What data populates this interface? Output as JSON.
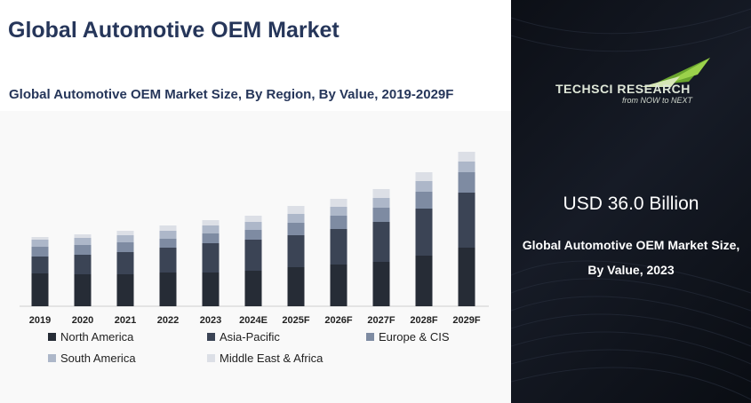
{
  "header": {
    "title": "Global Automotive OEM Market",
    "subtitle": "Global Automotive OEM Market Size, By Region, By Value, 2019-2029F"
  },
  "brand": {
    "name": "TECHSCI RESEARCH",
    "tagline": "from NOW to NEXT"
  },
  "highlight": {
    "value": "USD 36.0 Billion",
    "description_line1": "Global Automotive OEM Market Size,",
    "description_line2": "By Value, 2023"
  },
  "colors": {
    "north_america": "#262c36",
    "asia_pacific": "#3b4455",
    "europe_cis": "#7e8ba2",
    "south_america": "#adb7c9",
    "mea": "#dcdfe6",
    "accent_green": "#8cc63f"
  },
  "chart_data": {
    "type": "bar",
    "stacked": true,
    "categories": [
      "2019",
      "2020",
      "2021",
      "2022",
      "2023",
      "2024E",
      "2025F",
      "2026F",
      "2027F",
      "2028F",
      "2029F"
    ],
    "series": [
      {
        "name": "North America",
        "values": [
          37,
          36,
          36,
          38,
          38,
          40,
          44,
          47,
          50,
          57,
          66
        ]
      },
      {
        "name": "Asia-Pacific",
        "values": [
          19,
          22,
          25,
          28,
          33,
          35,
          36,
          40,
          45,
          53,
          62
        ]
      },
      {
        "name": "Europe & CIS",
        "values": [
          11,
          11,
          11,
          10,
          11,
          11,
          14,
          15,
          16,
          19,
          23
        ]
      },
      {
        "name": "South America",
        "values": [
          8,
          8,
          8,
          9,
          9,
          9,
          10,
          10,
          11,
          12,
          12
        ]
      },
      {
        "name": "Middle East & Africa",
        "values": [
          3,
          4,
          5,
          6,
          6,
          7,
          9,
          9,
          10,
          10,
          11
        ]
      }
    ],
    "legend_position": "bottom",
    "grid": false
  }
}
